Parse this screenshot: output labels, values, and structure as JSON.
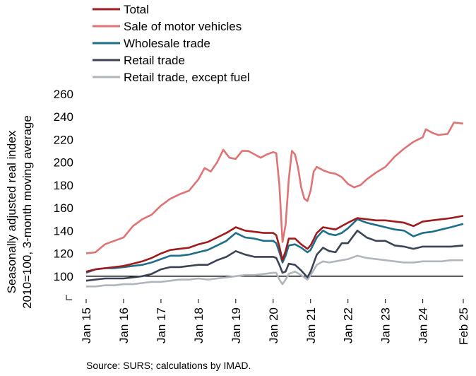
{
  "chart_data": {
    "type": "line",
    "ylabel_lines": [
      "Seasonally adjusted real index",
      "2010=100, 3-month moving average"
    ],
    "ylim": [
      80,
      260
    ],
    "yticks": [
      100,
      120,
      140,
      160,
      180,
      200,
      220,
      240,
      260
    ],
    "xticks": [
      "Jan 15",
      "Jan 16",
      "Jan 17",
      "Jan 18",
      "Jan 19",
      "Jan 20",
      "Jan 21",
      "Jan 22",
      "Jan 23",
      "Jan 24",
      "Feb 25"
    ],
    "reference_line": 100,
    "source": "Source: SURS; calculations by IMAD.",
    "series": [
      {
        "name": "Total",
        "color": "#a01b1b",
        "points": [
          [
            "2015-01",
            104
          ],
          [
            "2015-04",
            106
          ],
          [
            "2015-07",
            107
          ],
          [
            "2015-10",
            108
          ],
          [
            "2016-01",
            109
          ],
          [
            "2016-04",
            111
          ],
          [
            "2016-07",
            113
          ],
          [
            "2016-10",
            116
          ],
          [
            "2017-01",
            120
          ],
          [
            "2017-04",
            123
          ],
          [
            "2017-07",
            124
          ],
          [
            "2017-10",
            125
          ],
          [
            "2018-01",
            128
          ],
          [
            "2018-04",
            130
          ],
          [
            "2018-07",
            134
          ],
          [
            "2018-10",
            138
          ],
          [
            "2019-01",
            143
          ],
          [
            "2019-04",
            140
          ],
          [
            "2019-07",
            139
          ],
          [
            "2019-10",
            138
          ],
          [
            "2020-01",
            138
          ],
          [
            "2020-02",
            136
          ],
          [
            "2020-03",
            126
          ],
          [
            "2020-04",
            114
          ],
          [
            "2020-05",
            122
          ],
          [
            "2020-06",
            133
          ],
          [
            "2020-08",
            133
          ],
          [
            "2020-10",
            128
          ],
          [
            "2020-12",
            124
          ],
          [
            "2021-01",
            127
          ],
          [
            "2021-03",
            138
          ],
          [
            "2021-05",
            143
          ],
          [
            "2021-07",
            142
          ],
          [
            "2021-09",
            141
          ],
          [
            "2021-11",
            144
          ],
          [
            "2022-01",
            147
          ],
          [
            "2022-04",
            151
          ],
          [
            "2022-07",
            150
          ],
          [
            "2022-10",
            149
          ],
          [
            "2023-01",
            149
          ],
          [
            "2023-04",
            148
          ],
          [
            "2023-07",
            147
          ],
          [
            "2023-10",
            144
          ],
          [
            "2024-01",
            148
          ],
          [
            "2024-04",
            149
          ],
          [
            "2024-07",
            150
          ],
          [
            "2024-10",
            151
          ],
          [
            "2025-02",
            153
          ]
        ]
      },
      {
        "name": "Sale of motor vehicles",
        "color": "#e07373",
        "points": [
          [
            "2015-01",
            120
          ],
          [
            "2015-04",
            121
          ],
          [
            "2015-07",
            128
          ],
          [
            "2015-10",
            131
          ],
          [
            "2016-01",
            134
          ],
          [
            "2016-04",
            144
          ],
          [
            "2016-07",
            150
          ],
          [
            "2016-10",
            154
          ],
          [
            "2017-01",
            162
          ],
          [
            "2017-04",
            168
          ],
          [
            "2017-07",
            172
          ],
          [
            "2017-10",
            175
          ],
          [
            "2018-01",
            185
          ],
          [
            "2018-03",
            195
          ],
          [
            "2018-05",
            192
          ],
          [
            "2018-07",
            200
          ],
          [
            "2018-09",
            211
          ],
          [
            "2018-11",
            204
          ],
          [
            "2019-01",
            203
          ],
          [
            "2019-03",
            210
          ],
          [
            "2019-05",
            210
          ],
          [
            "2019-07",
            207
          ],
          [
            "2019-09",
            204
          ],
          [
            "2019-11",
            207
          ],
          [
            "2020-01",
            209
          ],
          [
            "2020-02",
            208
          ],
          [
            "2020-03",
            180
          ],
          [
            "2020-04",
            130
          ],
          [
            "2020-05",
            145
          ],
          [
            "2020-06",
            185
          ],
          [
            "2020-07",
            210
          ],
          [
            "2020-08",
            207
          ],
          [
            "2020-09",
            195
          ],
          [
            "2020-10",
            178
          ],
          [
            "2020-11",
            168
          ],
          [
            "2020-12",
            166
          ],
          [
            "2021-01",
            175
          ],
          [
            "2021-02",
            192
          ],
          [
            "2021-03",
            196
          ],
          [
            "2021-05",
            193
          ],
          [
            "2021-07",
            191
          ],
          [
            "2021-09",
            190
          ],
          [
            "2021-11",
            187
          ],
          [
            "2022-01",
            181
          ],
          [
            "2022-03",
            178
          ],
          [
            "2022-05",
            180
          ],
          [
            "2022-07",
            185
          ],
          [
            "2022-10",
            191
          ],
          [
            "2023-01",
            196
          ],
          [
            "2023-04",
            205
          ],
          [
            "2023-07",
            212
          ],
          [
            "2023-10",
            218
          ],
          [
            "2024-01",
            222
          ],
          [
            "2024-02",
            229
          ],
          [
            "2024-04",
            226
          ],
          [
            "2024-06",
            224
          ],
          [
            "2024-09",
            225
          ],
          [
            "2024-11",
            235
          ],
          [
            "2025-02",
            234
          ]
        ]
      },
      {
        "name": "Wholesale trade",
        "color": "#1f6e8a",
        "points": [
          [
            "2015-01",
            103
          ],
          [
            "2015-04",
            106
          ],
          [
            "2015-07",
            107
          ],
          [
            "2015-10",
            107
          ],
          [
            "2016-01",
            108
          ],
          [
            "2016-04",
            109
          ],
          [
            "2016-07",
            110
          ],
          [
            "2016-10",
            112
          ],
          [
            "2017-01",
            115
          ],
          [
            "2017-04",
            118
          ],
          [
            "2017-07",
            118
          ],
          [
            "2017-10",
            119
          ],
          [
            "2018-01",
            121
          ],
          [
            "2018-04",
            123
          ],
          [
            "2018-07",
            127
          ],
          [
            "2018-10",
            131
          ],
          [
            "2019-01",
            138
          ],
          [
            "2019-04",
            134
          ],
          [
            "2019-07",
            133
          ],
          [
            "2019-10",
            131
          ],
          [
            "2020-01",
            131
          ],
          [
            "2020-02",
            129
          ],
          [
            "2020-03",
            121
          ],
          [
            "2020-04",
            112
          ],
          [
            "2020-05",
            118
          ],
          [
            "2020-06",
            127
          ],
          [
            "2020-08",
            128
          ],
          [
            "2020-10",
            125
          ],
          [
            "2020-12",
            121
          ],
          [
            "2021-01",
            123
          ],
          [
            "2021-03",
            134
          ],
          [
            "2021-05",
            140
          ],
          [
            "2021-07",
            137
          ],
          [
            "2021-09",
            136
          ],
          [
            "2021-11",
            138
          ],
          [
            "2022-01",
            142
          ],
          [
            "2022-04",
            150
          ],
          [
            "2022-07",
            147
          ],
          [
            "2022-10",
            145
          ],
          [
            "2023-01",
            143
          ],
          [
            "2023-04",
            141
          ],
          [
            "2023-07",
            140
          ],
          [
            "2023-10",
            135
          ],
          [
            "2024-01",
            138
          ],
          [
            "2024-04",
            139
          ],
          [
            "2024-07",
            141
          ],
          [
            "2024-10",
            143
          ],
          [
            "2025-02",
            146
          ]
        ]
      },
      {
        "name": "Retail trade",
        "color": "#3b4456",
        "points": [
          [
            "2015-01",
            96
          ],
          [
            "2015-04",
            97
          ],
          [
            "2015-07",
            98
          ],
          [
            "2015-10",
            98
          ],
          [
            "2016-01",
            98
          ],
          [
            "2016-04",
            99
          ],
          [
            "2016-07",
            100
          ],
          [
            "2016-10",
            102
          ],
          [
            "2017-01",
            106
          ],
          [
            "2017-04",
            108
          ],
          [
            "2017-07",
            108
          ],
          [
            "2017-10",
            109
          ],
          [
            "2018-01",
            110
          ],
          [
            "2018-04",
            110
          ],
          [
            "2018-07",
            114
          ],
          [
            "2018-10",
            117
          ],
          [
            "2019-01",
            122
          ],
          [
            "2019-04",
            119
          ],
          [
            "2019-07",
            117
          ],
          [
            "2019-10",
            117
          ],
          [
            "2020-01",
            117
          ],
          [
            "2020-02",
            116
          ],
          [
            "2020-03",
            110
          ],
          [
            "2020-04",
            103
          ],
          [
            "2020-05",
            104
          ],
          [
            "2020-06",
            111
          ],
          [
            "2020-08",
            110
          ],
          [
            "2020-10",
            105
          ],
          [
            "2020-12",
            99
          ],
          [
            "2021-01",
            104
          ],
          [
            "2021-03",
            119
          ],
          [
            "2021-05",
            125
          ],
          [
            "2021-07",
            122
          ],
          [
            "2021-09",
            121
          ],
          [
            "2021-11",
            129
          ],
          [
            "2022-01",
            129
          ],
          [
            "2022-04",
            140
          ],
          [
            "2022-07",
            134
          ],
          [
            "2022-10",
            131
          ],
          [
            "2023-01",
            131
          ],
          [
            "2023-04",
            127
          ],
          [
            "2023-07",
            126
          ],
          [
            "2023-10",
            124
          ],
          [
            "2024-01",
            126
          ],
          [
            "2024-04",
            126
          ],
          [
            "2024-07",
            126
          ],
          [
            "2024-10",
            126
          ],
          [
            "2025-02",
            127
          ]
        ]
      },
      {
        "name": "Retail trade, except fuel",
        "color": "#b0b6bc",
        "points": [
          [
            "2015-01",
            91
          ],
          [
            "2015-04",
            91
          ],
          [
            "2015-07",
            92
          ],
          [
            "2015-10",
            92
          ],
          [
            "2016-01",
            93
          ],
          [
            "2016-04",
            93
          ],
          [
            "2016-07",
            94
          ],
          [
            "2016-10",
            95
          ],
          [
            "2017-01",
            95
          ],
          [
            "2017-04",
            96
          ],
          [
            "2017-07",
            97
          ],
          [
            "2017-10",
            97
          ],
          [
            "2018-01",
            98
          ],
          [
            "2018-04",
            97
          ],
          [
            "2018-07",
            98
          ],
          [
            "2018-10",
            99
          ],
          [
            "2019-01",
            100
          ],
          [
            "2019-04",
            101
          ],
          [
            "2019-07",
            101
          ],
          [
            "2019-10",
            102
          ],
          [
            "2020-01",
            103
          ],
          [
            "2020-02",
            103
          ],
          [
            "2020-03",
            97
          ],
          [
            "2020-04",
            93
          ],
          [
            "2020-05",
            97
          ],
          [
            "2020-06",
            102
          ],
          [
            "2020-08",
            104
          ],
          [
            "2020-10",
            101
          ],
          [
            "2020-12",
            97
          ],
          [
            "2021-01",
            101
          ],
          [
            "2021-03",
            110
          ],
          [
            "2021-05",
            113
          ],
          [
            "2021-07",
            112
          ],
          [
            "2021-09",
            113
          ],
          [
            "2021-11",
            114
          ],
          [
            "2022-01",
            115
          ],
          [
            "2022-04",
            118
          ],
          [
            "2022-07",
            116
          ],
          [
            "2022-10",
            115
          ],
          [
            "2023-01",
            114
          ],
          [
            "2023-04",
            113
          ],
          [
            "2023-07",
            112
          ],
          [
            "2023-10",
            112
          ],
          [
            "2024-01",
            113
          ],
          [
            "2024-04",
            113
          ],
          [
            "2024-07",
            113
          ],
          [
            "2024-10",
            114
          ],
          [
            "2025-02",
            114
          ]
        ]
      }
    ]
  }
}
